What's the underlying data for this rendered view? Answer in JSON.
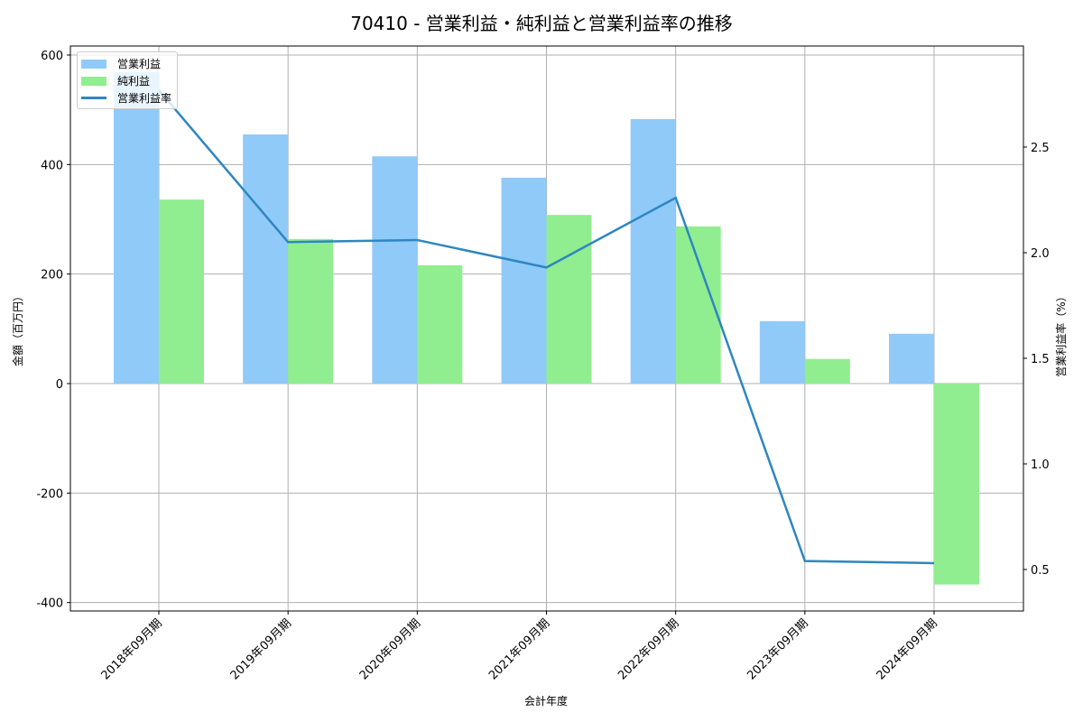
{
  "chart_data": {
    "type": "bar",
    "title": "70410 - 営業利益・純利益と営業利益率の推移",
    "xlabel": "会計年度",
    "ylabel": "金額（百万円）",
    "y2label": "営業利益率（%）",
    "categories": [
      "2018年09月期",
      "2019年09月期",
      "2020年09月期",
      "2021年09月期",
      "2022年09月期",
      "2023年09月期",
      "2024年09月期"
    ],
    "series": [
      {
        "name": "営業利益",
        "type": "bar",
        "axis": "left",
        "color": "#90CAF9",
        "values": [
          569,
          455,
          415,
          376,
          483,
          114,
          91
        ]
      },
      {
        "name": "純利益",
        "type": "bar",
        "axis": "left",
        "color": "#90EE90",
        "values": [
          336,
          264,
          216,
          308,
          287,
          45,
          -367
        ]
      },
      {
        "name": "営業利益率",
        "type": "line",
        "axis": "right",
        "color": "#2E86C1",
        "values": [
          2.77,
          2.05,
          2.06,
          1.93,
          2.26,
          0.54,
          0.53
        ]
      }
    ],
    "ylim": [
      -418,
      618
    ],
    "y2lim": [
      0.29,
      2.97
    ],
    "yticks": [
      -400,
      -200,
      0,
      200,
      400,
      600
    ],
    "y2ticks": [
      0.5,
      1.0,
      1.5,
      2.0,
      2.5
    ],
    "grid": true,
    "legend_position": "upper left"
  }
}
